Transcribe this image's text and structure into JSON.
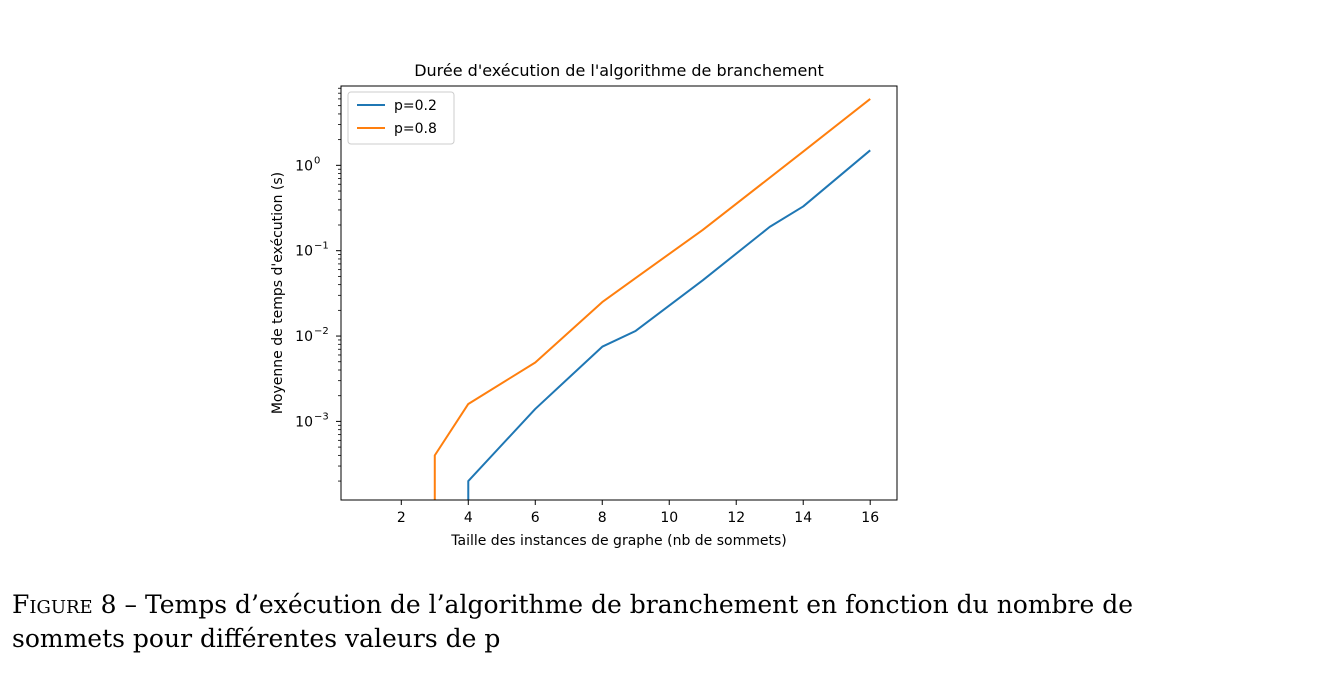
{
  "chart_data": {
    "type": "line",
    "title": "Durée d'exécution de l'algorithme de branchement",
    "xlabel": "Taille des instances de graphe (nb de sommets)",
    "ylabel": "Moyenne de temps d'exécution (s)",
    "xlim": [
      0.2,
      16.8
    ],
    "ylim": [
      0.00012,
      8.5
    ],
    "yscale": "log",
    "xticks": [
      2,
      4,
      6,
      8,
      10,
      12,
      14,
      16
    ],
    "yticks": [
      {
        "value": 0.001,
        "base": "10",
        "exp": "−3"
      },
      {
        "value": 0.01,
        "base": "10",
        "exp": "−2"
      },
      {
        "value": 0.1,
        "base": "10",
        "exp": "−1"
      },
      {
        "value": 1,
        "base": "10",
        "exp": "0"
      }
    ],
    "legend_position": "top-left",
    "grid": false,
    "series": [
      {
        "name": "p=0.2",
        "color": "#1f77b4",
        "points": [
          [
            4,
            5e-05
          ],
          [
            4,
            0.0002
          ],
          [
            6,
            0.0014
          ],
          [
            8,
            0.0075
          ],
          [
            9,
            0.0115
          ],
          [
            11,
            0.045
          ],
          [
            13,
            0.19
          ],
          [
            14,
            0.33
          ],
          [
            16,
            1.5
          ]
        ]
      },
      {
        "name": "p=0.8",
        "color": "#ff7f0e",
        "points": [
          [
            3,
            5e-05
          ],
          [
            3,
            0.0004
          ],
          [
            4,
            0.0016
          ],
          [
            6,
            0.0049
          ],
          [
            8,
            0.025
          ],
          [
            9,
            0.048
          ],
          [
            11,
            0.175
          ],
          [
            14,
            1.45
          ],
          [
            16,
            6.0
          ]
        ]
      }
    ]
  },
  "caption": {
    "label": "Figure 8",
    "separator": " – ",
    "text": "Temps d’exécution de l’algorithme de branchement en fonction du nombre de sommets pour différentes valeurs de p"
  }
}
